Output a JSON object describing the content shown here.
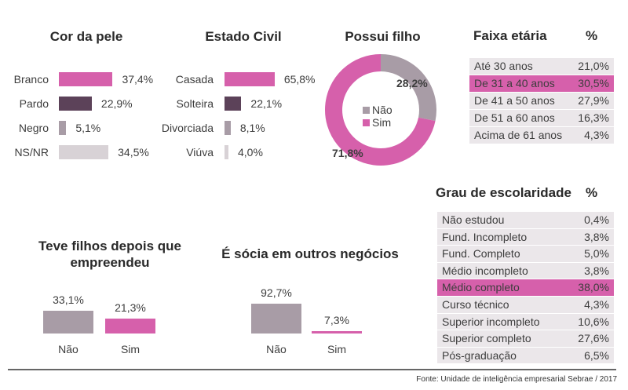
{
  "colors": {
    "pink": "#d660ab",
    "dark_plum": "#5c4259",
    "gray": "#a89ca6",
    "light_gray": "#d8d2d6",
    "table_row": "#ebe7ea",
    "table_highlight": "#d660ab"
  },
  "chart_data": [
    {
      "type": "bar",
      "orientation": "horizontal",
      "title": "Cor da pele",
      "categories": [
        "Branco",
        "Pardo",
        "Negro",
        "NS/NR"
      ],
      "values": [
        37.4,
        22.9,
        5.1,
        34.5
      ],
      "value_labels": [
        "37,4%",
        "22,9%",
        "5,1%",
        "34,5%"
      ],
      "colors": [
        "#d660ab",
        "#5c4259",
        "#a89ca6",
        "#d8d2d6"
      ]
    },
    {
      "type": "bar",
      "orientation": "horizontal",
      "title": "Estado Civil",
      "categories": [
        "Casada",
        "Solteira",
        "Divorciada",
        "Viúva"
      ],
      "values": [
        65.8,
        22.1,
        8.1,
        4.0
      ],
      "value_labels": [
        "65,8%",
        "22,1%",
        "8,1%",
        "4,0%"
      ],
      "colors": [
        "#d660ab",
        "#5c4259",
        "#a89ca6",
        "#d8d2d6"
      ]
    },
    {
      "type": "pie",
      "style": "donut",
      "title": "Possui filho",
      "categories": [
        "Não",
        "Sim"
      ],
      "values": [
        28.2,
        71.8
      ],
      "value_labels": [
        "28,2%",
        "71,8%"
      ],
      "colors": [
        "#a89ca6",
        "#d660ab"
      ]
    },
    {
      "type": "table",
      "title": "Faixa etária",
      "value_header": "%",
      "rows": [
        {
          "label": "Até 30 anos",
          "value": "21,0%"
        },
        {
          "label": "De 31 a 40 anos",
          "value": "30,5%",
          "highlight": true
        },
        {
          "label": "De 41 a 50 anos",
          "value": "27,9%"
        },
        {
          "label": "De 51 a 60 anos",
          "value": "16,3%"
        },
        {
          "label": "Acima de 61 anos",
          "value": "4,3%"
        }
      ]
    },
    {
      "type": "table",
      "title": "Grau de escolaridade",
      "value_header": "%",
      "rows": [
        {
          "label": "Não estudou",
          "value": "0,4%"
        },
        {
          "label": "Fund. Incompleto",
          "value": "3,8%"
        },
        {
          "label": "Fund. Completo",
          "value": "5,0%"
        },
        {
          "label": "Médio incompleto",
          "value": "3,8%"
        },
        {
          "label": "Médio completo",
          "value": "38,0%",
          "highlight": true
        },
        {
          "label": "Curso técnico",
          "value": "4,3%"
        },
        {
          "label": "Superior incompleto",
          "value": "10,6%"
        },
        {
          "label": "Superior completo",
          "value": "27,6%"
        },
        {
          "label": "Pós-graduação",
          "value": "6,5%"
        }
      ]
    },
    {
      "type": "bar",
      "orientation": "vertical",
      "title": "Teve filhos depois que empreendeu",
      "categories": [
        "Não",
        "Sim"
      ],
      "values": [
        33.1,
        21.3
      ],
      "value_labels": [
        "33,1%",
        "21,3%"
      ],
      "colors": [
        "#a89ca6",
        "#d660ab"
      ]
    },
    {
      "type": "bar",
      "orientation": "vertical",
      "title": "É sócia em outros negócios",
      "categories": [
        "Não",
        "Sim"
      ],
      "values": [
        92.7,
        7.3
      ],
      "value_labels": [
        "92,7%",
        "7,3%"
      ],
      "colors": [
        "#a89ca6",
        "#d660ab"
      ]
    }
  ],
  "source": "Fonte: Unidade de inteligência empresarial Sebrae / 2017"
}
